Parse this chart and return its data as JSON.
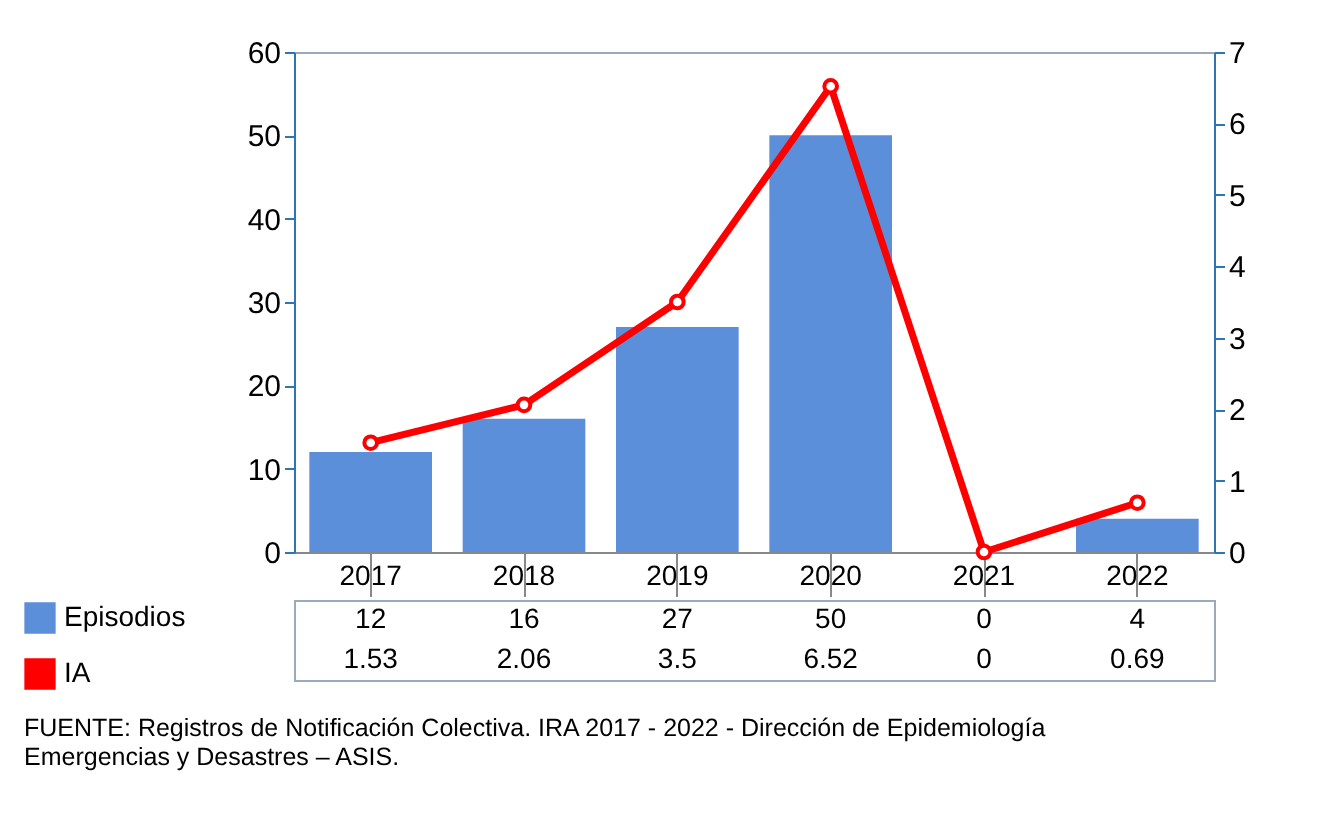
{
  "chart_data": {
    "type": "bar",
    "categories": [
      "2017",
      "2018",
      "2019",
      "2020",
      "2021",
      "2022"
    ],
    "series": [
      {
        "name": "Episodios",
        "color": "#5b8fd9",
        "values": [
          12,
          16,
          27,
          50,
          0,
          4
        ]
      },
      {
        "name": "IA",
        "type": "line",
        "axis": "y2",
        "color": "#ff0000",
        "values": [
          1.53,
          2.06,
          3.5,
          6.52,
          0,
          0.69
        ]
      }
    ],
    "ylim": [
      0,
      60
    ],
    "yticks": [
      0,
      10,
      20,
      30,
      40,
      50,
      60
    ],
    "y2lim": [
      0,
      7
    ],
    "y2ticks": [
      0,
      1,
      2,
      3,
      4,
      5,
      6,
      7
    ],
    "marker": "circle",
    "line_style": "solid",
    "data_labels": true,
    "legend": "bottom",
    "grid": false,
    "annotations": [
      "FUENTE: Registros de Notificación Colectiva. IRA 2017 - 2022 - Dirección de Epidemiología Emergencias y Desastres – ASIS."
    ]
  }
}
